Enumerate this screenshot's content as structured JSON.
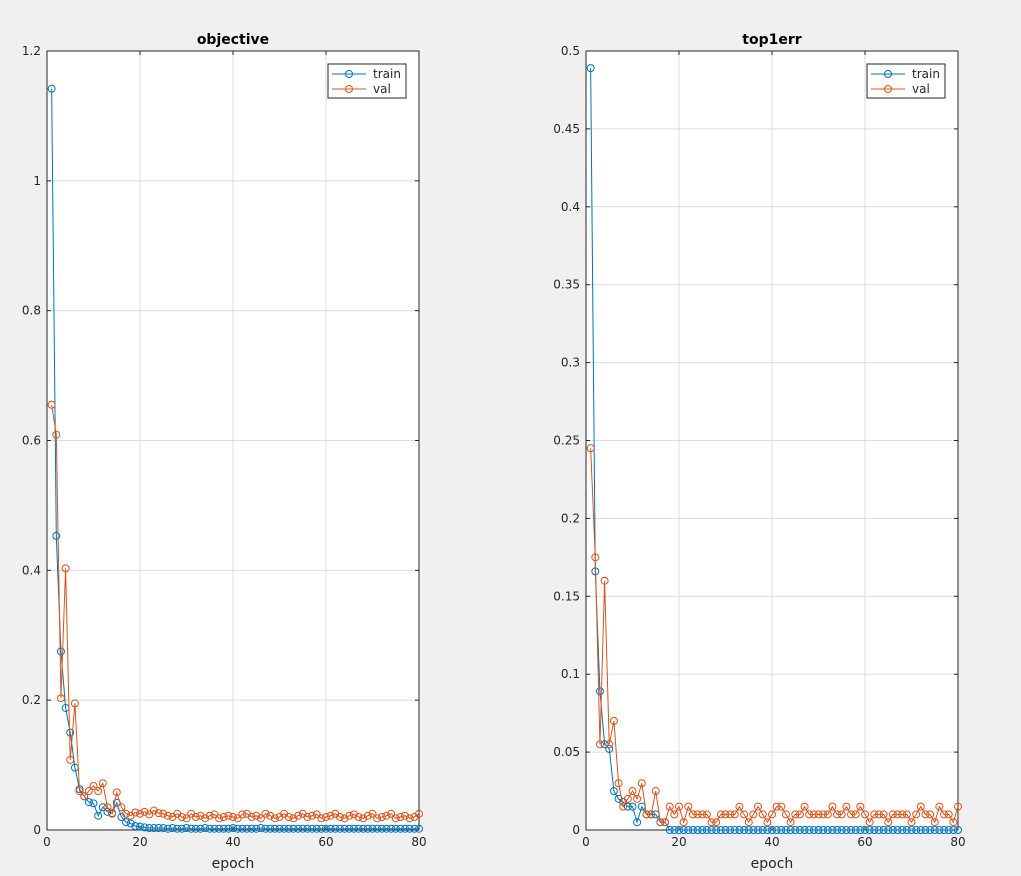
{
  "chart_data": [
    {
      "type": "line",
      "title": "objective",
      "xlabel": "epoch",
      "ylabel": "",
      "xlim": [
        0,
        80
      ],
      "ylim": [
        0,
        1.2
      ],
      "xticks": [
        "0",
        "20",
        "40",
        "60",
        "80"
      ],
      "yticks": [
        "0",
        "0.2",
        "0.4",
        "0.6",
        "0.8",
        "1",
        "1.2"
      ],
      "grid": true,
      "legend_position": "top-right",
      "x": [
        1,
        2,
        3,
        4,
        5,
        6,
        7,
        8,
        9,
        10,
        11,
        12,
        13,
        14,
        15,
        16,
        17,
        18,
        19,
        20,
        21,
        22,
        23,
        24,
        25,
        26,
        27,
        28,
        29,
        30,
        31,
        32,
        33,
        34,
        35,
        36,
        37,
        38,
        39,
        40,
        41,
        42,
        43,
        44,
        45,
        46,
        47,
        48,
        49,
        50,
        51,
        52,
        53,
        54,
        55,
        56,
        57,
        58,
        59,
        60,
        61,
        62,
        63,
        64,
        65,
        66,
        67,
        68,
        69,
        70,
        71,
        72,
        73,
        74,
        75,
        76,
        77,
        78,
        79,
        80
      ],
      "series": [
        {
          "name": "train",
          "color": "#0072bd",
          "values": [
            1.142,
            0.453,
            0.275,
            0.188,
            0.15,
            0.096,
            0.063,
            0.052,
            0.043,
            0.041,
            0.022,
            0.035,
            0.028,
            0.026,
            0.042,
            0.02,
            0.012,
            0.01,
            0.006,
            0.005,
            0.004,
            0.003,
            0.003,
            0.003,
            0.003,
            0.002,
            0.003,
            0.002,
            0.002,
            0.003,
            0.002,
            0.002,
            0.002,
            0.003,
            0.002,
            0.002,
            0.002,
            0.002,
            0.002,
            0.003,
            0.002,
            0.002,
            0.002,
            0.002,
            0.002,
            0.003,
            0.002,
            0.002,
            0.002,
            0.002,
            0.002,
            0.002,
            0.002,
            0.002,
            0.002,
            0.002,
            0.002,
            0.002,
            0.002,
            0.002,
            0.002,
            0.002,
            0.002,
            0.002,
            0.002,
            0.002,
            0.002,
            0.002,
            0.002,
            0.002,
            0.002,
            0.002,
            0.002,
            0.002,
            0.002,
            0.002,
            0.002,
            0.002,
            0.002,
            0.002
          ]
        },
        {
          "name": "val",
          "color": "#d95319",
          "values": [
            0.655,
            0.609,
            0.203,
            0.403,
            0.108,
            0.195,
            0.06,
            0.052,
            0.06,
            0.068,
            0.06,
            0.072,
            0.035,
            0.025,
            0.058,
            0.035,
            0.025,
            0.022,
            0.027,
            0.025,
            0.028,
            0.024,
            0.03,
            0.026,
            0.025,
            0.022,
            0.02,
            0.025,
            0.02,
            0.018,
            0.025,
            0.02,
            0.022,
            0.018,
            0.022,
            0.024,
            0.018,
            0.02,
            0.022,
            0.02,
            0.018,
            0.024,
            0.025,
            0.02,
            0.022,
            0.018,
            0.025,
            0.022,
            0.018,
            0.02,
            0.025,
            0.02,
            0.018,
            0.022,
            0.025,
            0.02,
            0.022,
            0.024,
            0.018,
            0.02,
            0.022,
            0.025,
            0.02,
            0.018,
            0.022,
            0.024,
            0.02,
            0.018,
            0.022,
            0.025,
            0.018,
            0.02,
            0.022,
            0.025,
            0.018,
            0.02,
            0.022,
            0.018,
            0.02,
            0.025
          ]
        }
      ]
    },
    {
      "type": "line",
      "title": "top1err",
      "xlabel": "epoch",
      "ylabel": "",
      "xlim": [
        0,
        80
      ],
      "ylim": [
        0,
        0.5
      ],
      "xticks": [
        "0",
        "20",
        "40",
        "60",
        "80"
      ],
      "yticks": [
        "0",
        "0.05",
        "0.1",
        "0.15",
        "0.2",
        "0.25",
        "0.3",
        "0.35",
        "0.4",
        "0.45",
        "0.5"
      ],
      "grid": true,
      "legend_position": "top-right",
      "x": [
        1,
        2,
        3,
        4,
        5,
        6,
        7,
        8,
        9,
        10,
        11,
        12,
        13,
        14,
        15,
        16,
        17,
        18,
        19,
        20,
        21,
        22,
        23,
        24,
        25,
        26,
        27,
        28,
        29,
        30,
        31,
        32,
        33,
        34,
        35,
        36,
        37,
        38,
        39,
        40,
        41,
        42,
        43,
        44,
        45,
        46,
        47,
        48,
        49,
        50,
        51,
        52,
        53,
        54,
        55,
        56,
        57,
        58,
        59,
        60,
        61,
        62,
        63,
        64,
        65,
        66,
        67,
        68,
        69,
        70,
        71,
        72,
        73,
        74,
        75,
        76,
        77,
        78,
        79,
        80
      ],
      "series": [
        {
          "name": "train",
          "color": "#0072bd",
          "values": [
            0.489,
            0.166,
            0.089,
            0.055,
            0.052,
            0.025,
            0.02,
            0.018,
            0.015,
            0.015,
            0.005,
            0.015,
            0.01,
            0.01,
            0.01,
            0.005,
            0.005,
            0.0,
            0.0,
            0.0,
            0.0,
            0.0,
            0.0,
            0.0,
            0.0,
            0.0,
            0.0,
            0.0,
            0.0,
            0.0,
            0.0,
            0.0,
            0.0,
            0.0,
            0.0,
            0.0,
            0.0,
            0.0,
            0.0,
            0.0,
            0.0,
            0.0,
            0.0,
            0.0,
            0.0,
            0.0,
            0.0,
            0.0,
            0.0,
            0.0,
            0.0,
            0.0,
            0.0,
            0.0,
            0.0,
            0.0,
            0.0,
            0.0,
            0.0,
            0.0,
            0.0,
            0.0,
            0.0,
            0.0,
            0.0,
            0.0,
            0.0,
            0.0,
            0.0,
            0.0,
            0.0,
            0.0,
            0.0,
            0.0,
            0.0,
            0.0,
            0.0,
            0.0,
            0.0,
            0.0
          ]
        },
        {
          "name": "val",
          "color": "#d95319",
          "values": [
            0.245,
            0.175,
            0.055,
            0.16,
            0.055,
            0.07,
            0.03,
            0.015,
            0.02,
            0.025,
            0.02,
            0.03,
            0.01,
            0.01,
            0.025,
            0.005,
            0.005,
            0.015,
            0.01,
            0.015,
            0.005,
            0.015,
            0.01,
            0.01,
            0.01,
            0.01,
            0.005,
            0.005,
            0.01,
            0.01,
            0.01,
            0.01,
            0.015,
            0.01,
            0.005,
            0.01,
            0.015,
            0.01,
            0.005,
            0.01,
            0.015,
            0.015,
            0.01,
            0.005,
            0.01,
            0.01,
            0.015,
            0.01,
            0.01,
            0.01,
            0.01,
            0.01,
            0.015,
            0.01,
            0.01,
            0.015,
            0.01,
            0.01,
            0.015,
            0.01,
            0.005,
            0.01,
            0.01,
            0.01,
            0.005,
            0.01,
            0.01,
            0.01,
            0.01,
            0.005,
            0.01,
            0.015,
            0.01,
            0.01,
            0.005,
            0.015,
            0.01,
            0.01,
            0.005,
            0.015
          ]
        }
      ]
    }
  ]
}
